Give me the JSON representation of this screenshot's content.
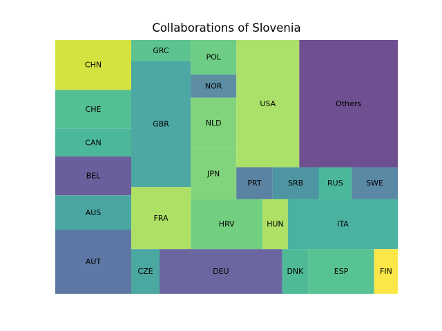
{
  "chart_data": {
    "type": "treemap",
    "title": "Collaborations of Slovenia",
    "tiles": [
      {
        "label": "CHN",
        "value": 36,
        "color": "#d5e340"
      },
      {
        "label": "CHE",
        "value": 28,
        "color": "#55bf94"
      },
      {
        "label": "CAN",
        "value": 20,
        "color": "#4bb79b"
      },
      {
        "label": "BEL",
        "value": 28,
        "color": "#6a5e9b"
      },
      {
        "label": "AUS",
        "value": 25,
        "color": "#4ba6a2"
      },
      {
        "label": "AUT",
        "value": 46,
        "color": "#5e77a4"
      },
      {
        "label": "GRC",
        "value": 12,
        "color": "#5cc390"
      },
      {
        "label": "GBR",
        "value": 71,
        "color": "#4da7a3"
      },
      {
        "label": "FRA",
        "value": 35,
        "color": "#aee066"
      },
      {
        "label": "CZE",
        "value": 12,
        "color": "#4ba8a0"
      },
      {
        "label": "POL",
        "value": 15,
        "color": "#6dcd85"
      },
      {
        "label": "NOR",
        "value": 10,
        "color": "#5c8da3"
      },
      {
        "label": "NLD",
        "value": 22,
        "color": "#82d47c"
      },
      {
        "label": "JPN",
        "value": 22,
        "color": "#82d47c"
      },
      {
        "label": "USA",
        "value": 76,
        "color": "#abe06a"
      },
      {
        "label": "Others",
        "value": 119,
        "color": "#6e4f90"
      },
      {
        "label": "PRT",
        "value": 11,
        "color": "#5a82a2"
      },
      {
        "label": "SRB",
        "value": 14,
        "color": "#4d95a2"
      },
      {
        "label": "RUS",
        "value": 10,
        "color": "#4bb89c"
      },
      {
        "label": "SWE",
        "value": 14,
        "color": "#5a89a6"
      },
      {
        "label": "HRV",
        "value": 34,
        "color": "#72cf80"
      },
      {
        "label": "HUN",
        "value": 12,
        "color": "#aee066"
      },
      {
        "label": "ITA",
        "value": 52,
        "color": "#4cb2a0"
      },
      {
        "label": "DEU",
        "value": 52,
        "color": "#6a67a0"
      },
      {
        "label": "DNK",
        "value": 11,
        "color": "#4fba96"
      },
      {
        "label": "ESP",
        "value": 28,
        "color": "#58c392"
      },
      {
        "label": "FIN",
        "value": 10,
        "color": "#fde748"
      }
    ]
  }
}
